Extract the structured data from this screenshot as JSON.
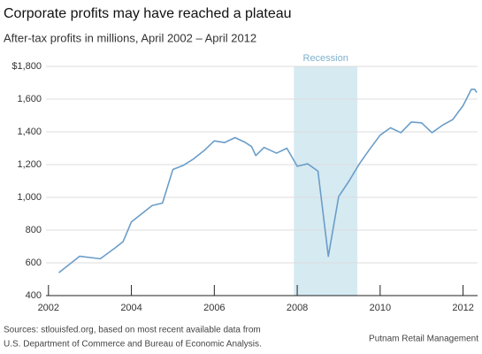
{
  "chart_data": {
    "type": "line",
    "title": "Corporate profits may have reached a plateau",
    "subtitle": "After-tax profits in millions, April 2002 – April 2012",
    "annotation": "Recession",
    "recession": [
      2007.92,
      2009.45
    ],
    "recession_color": "#d6eaf2",
    "source": [
      "Sources: stlouisfed.org, based on most recent available data from",
      "U.S. Department of Commerce and Bureau of Economic Analysis."
    ],
    "credit": "Putnam Retail Management",
    "x": [
      2002.25,
      2002.75,
      2003.25,
      2003.6,
      2003.8,
      2004.0,
      2004.25,
      2004.5,
      2004.75,
      2005.0,
      2005.25,
      2005.5,
      2005.75,
      2006.0,
      2006.25,
      2006.5,
      2006.75,
      2006.9,
      2007.0,
      2007.2,
      2007.5,
      2007.75,
      2008.0,
      2008.25,
      2008.5,
      2008.75,
      2009.0,
      2009.25,
      2009.5,
      2009.75,
      2010.0,
      2010.25,
      2010.5,
      2010.75,
      2011.0,
      2011.25,
      2011.5,
      2011.75,
      2012.0,
      2012.2,
      2012.28,
      2012.33
    ],
    "series": [
      {
        "name": "After-tax profits",
        "color": "#6b9dc9",
        "values": [
          540,
          640,
          625,
          690,
          730,
          850,
          900,
          950,
          965,
          1170,
          1195,
          1235,
          1285,
          1345,
          1335,
          1365,
          1335,
          1310,
          1255,
          1305,
          1270,
          1300,
          1190,
          1205,
          1160,
          640,
          1005,
          1100,
          1205,
          1295,
          1380,
          1425,
          1395,
          1460,
          1455,
          1395,
          1440,
          1475,
          1560,
          1660,
          1660,
          1640
        ]
      }
    ],
    "xlim": [
      2001.94,
      2012.35
    ],
    "ylim": [
      400,
      1800
    ],
    "xticks": [
      2002,
      2004,
      2006,
      2008,
      2010,
      2012
    ],
    "yticks": [
      {
        "value": 400,
        "label": "400"
      },
      {
        "value": 600,
        "label": "600"
      },
      {
        "value": 800,
        "label": "800"
      },
      {
        "value": 1000,
        "label": "1,000"
      },
      {
        "value": 1200,
        "label": "1,200"
      },
      {
        "value": 1400,
        "label": "1,400"
      },
      {
        "value": 1600,
        "label": "1,600"
      },
      {
        "value": 1800,
        "label": "$1,800"
      }
    ],
    "grid": true
  }
}
